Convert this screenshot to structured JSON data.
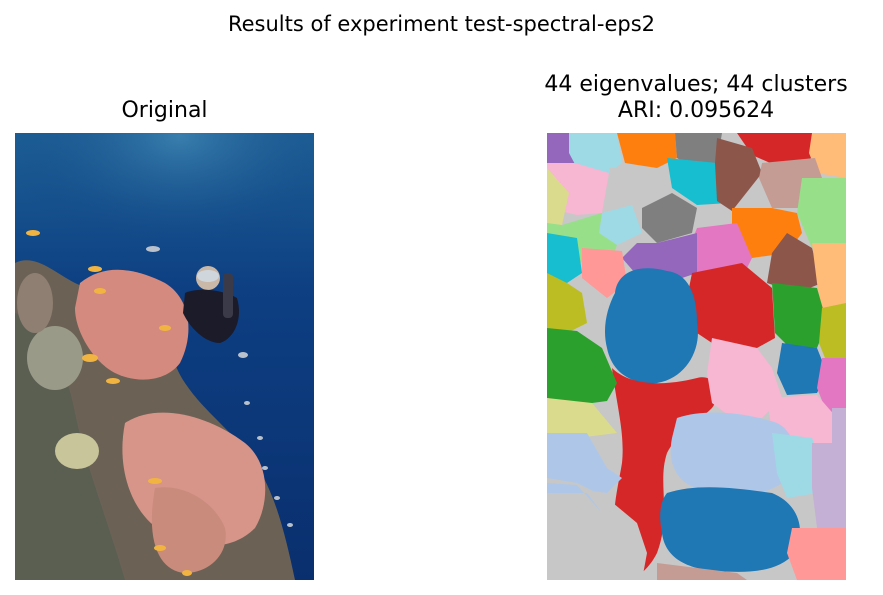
{
  "figure": {
    "suptitle": "Results of experiment test-spectral-eps2"
  },
  "left_panel": {
    "title": "Original",
    "image_description_icon": "underwater-diver-coral-photo"
  },
  "right_panel": {
    "title_line1": "44 eigenvalues; 44 clusters",
    "title_line2": "ARI: 0.095624",
    "image_description_icon": "segmentation-map"
  },
  "colors": {
    "blue": "#1f77b4",
    "light_blue": "#aec7e8",
    "orange": "#ff7f0e",
    "light_orange": "#ffbb78",
    "green": "#2ca02c",
    "light_green": "#98df8a",
    "red": "#d62728",
    "salmon": "#ff9896",
    "purple": "#9467bd",
    "lavender": "#c5b0d5",
    "brown": "#8c564b",
    "tan": "#c49c94",
    "pink": "#e377c2",
    "light_pink": "#f7b6d2",
    "gray": "#7f7f7f",
    "light_gray": "#c7c7c7",
    "olive": "#bcbd22",
    "khaki": "#dbdb8d",
    "cyan": "#17becf",
    "light_cyan": "#9edae5"
  }
}
